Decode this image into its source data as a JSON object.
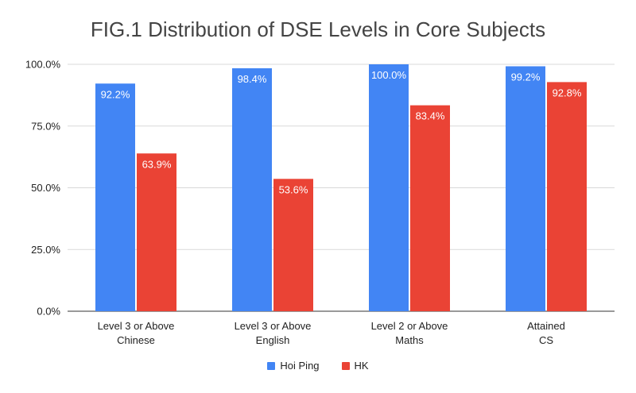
{
  "chart_data": {
    "type": "bar",
    "title": "FIG.1 Distribution of DSE Levels in Core Subjects",
    "xlabel": "",
    "ylabel": "",
    "categories": [
      [
        "Level 3 or Above",
        "Chinese"
      ],
      [
        "Level 3 or Above",
        "English"
      ],
      [
        "Level 2 or Above",
        "Maths"
      ],
      [
        "Attained",
        "CS"
      ]
    ],
    "series": [
      {
        "name": "Hoi Ping",
        "color": "#4285F4",
        "values": [
          92.2,
          98.4,
          100.0,
          99.2
        ],
        "labels": [
          "92.2%",
          "98.4%",
          "100.0%",
          "99.2%"
        ]
      },
      {
        "name": "HK",
        "color": "#EA4335",
        "values": [
          63.9,
          53.6,
          83.4,
          92.8
        ],
        "labels": [
          "63.9%",
          "53.6%",
          "83.4%",
          "92.8%"
        ]
      }
    ],
    "ylim": [
      0,
      100
    ],
    "yticks": [
      0,
      25,
      50,
      75,
      100
    ],
    "ytick_labels": [
      "0.0%",
      "25.0%",
      "50.0%",
      "75.0%",
      "100.0%"
    ],
    "grid": true,
    "legend_position": "bottom"
  }
}
